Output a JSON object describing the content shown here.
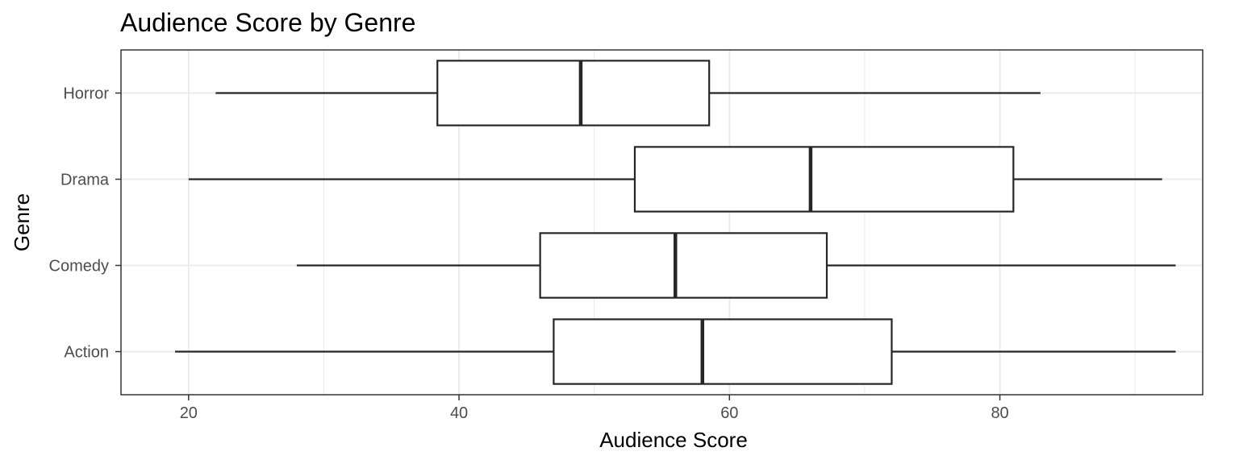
{
  "chart_data": {
    "type": "boxplot",
    "orientation": "horizontal",
    "title": "Audience Score by Genre",
    "xlabel": "Audience Score",
    "ylabel": "Genre",
    "xlim": [
      15,
      95
    ],
    "x_ticks": [
      20,
      40,
      60,
      80
    ],
    "x_tick_labels": [
      "20",
      "40",
      "60",
      "80"
    ],
    "grid": true,
    "legend": "none",
    "colors": {
      "box_stroke": "#262626",
      "grid": "#ebebeb",
      "panel_border": "#333333",
      "tick_label": "#4d4d4d"
    },
    "categories": [
      "Action",
      "Comedy",
      "Drama",
      "Horror"
    ],
    "boxes": [
      {
        "category": "Action",
        "min": 19,
        "q1": 47,
        "median": 58,
        "q3": 72,
        "max": 93
      },
      {
        "category": "Comedy",
        "min": 28,
        "q1": 46,
        "median": 56,
        "q3": 67.2,
        "max": 93
      },
      {
        "category": "Drama",
        "min": 20,
        "q1": 53,
        "median": 66,
        "q3": 81,
        "max": 92
      },
      {
        "category": "Horror",
        "min": 22,
        "q1": 38.4,
        "median": 49,
        "q3": 58.5,
        "max": 83
      }
    ]
  }
}
